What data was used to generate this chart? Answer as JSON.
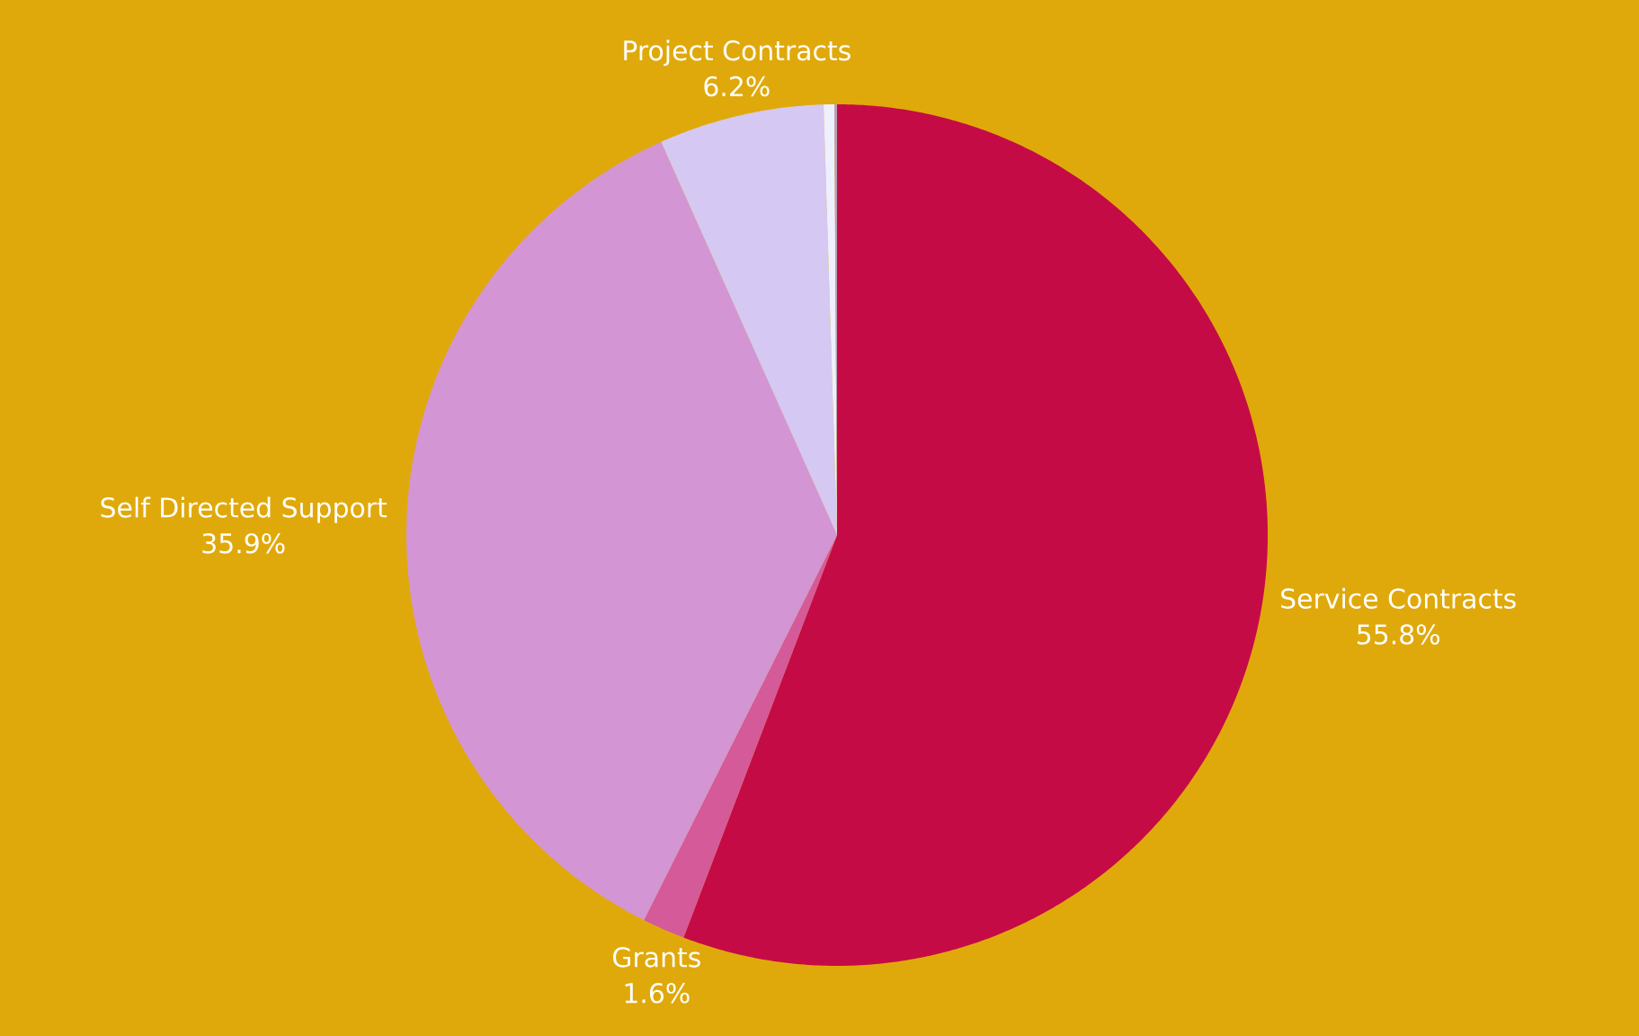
{
  "chart_data": {
    "type": "pie",
    "categories": [
      "Service Contracts",
      "Grants",
      "Self Directed Support",
      "Project Contracts",
      null,
      null
    ],
    "values": [
      55.8,
      1.6,
      35.9,
      6.2,
      0.4,
      0.1
    ],
    "colors": [
      "#c50b45",
      "#d55a9a",
      "#d395d3",
      "#d5c8f2",
      "#eef0ff",
      "#b9a0b8"
    ],
    "value_labels": [
      "55.8%",
      "1.6%",
      "35.9%",
      "6.2%",
      null,
      null
    ]
  }
}
